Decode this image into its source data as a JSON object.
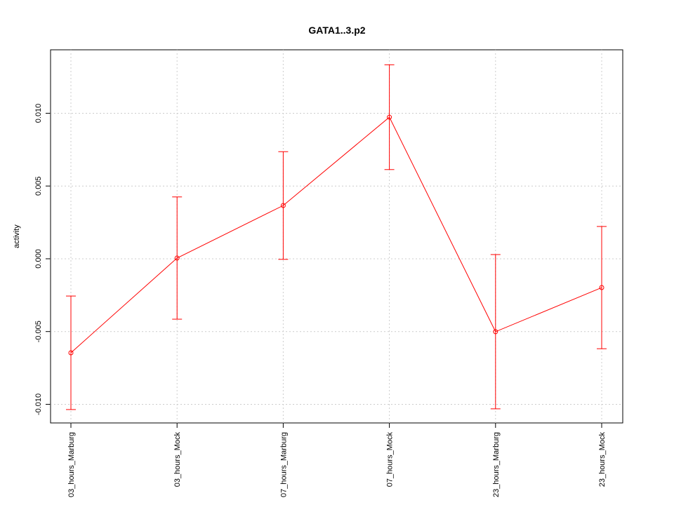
{
  "chart_data": {
    "type": "errorbar",
    "title": "GATA1..3.p2",
    "ylabel": "activity",
    "categories": [
      "03_hours_Marburg",
      "03_hours_Mock",
      "07_hours_Marburg",
      "07_hours_Mock",
      "23_hours_Marburg",
      "23_hours_Mock"
    ],
    "series": [
      {
        "color": "#ff0000",
        "values": [
          -0.00646,
          5e-05,
          0.00366,
          0.00973,
          -0.00501,
          -0.00198
        ],
        "errors": [
          0.0039,
          0.0042,
          0.0037,
          0.0036,
          0.0053,
          0.0042
        ]
      }
    ],
    "ylim": [
      -0.01128,
      0.01436
    ],
    "yticks": [
      {
        "value": -0.01,
        "label": "-0.010"
      },
      {
        "value": -0.005,
        "label": "-0.005"
      },
      {
        "value": 0,
        "label": "0.000"
      },
      {
        "value": 0.005,
        "label": "0.005"
      },
      {
        "value": 0.01,
        "label": "0.010"
      }
    ],
    "grid": true
  }
}
